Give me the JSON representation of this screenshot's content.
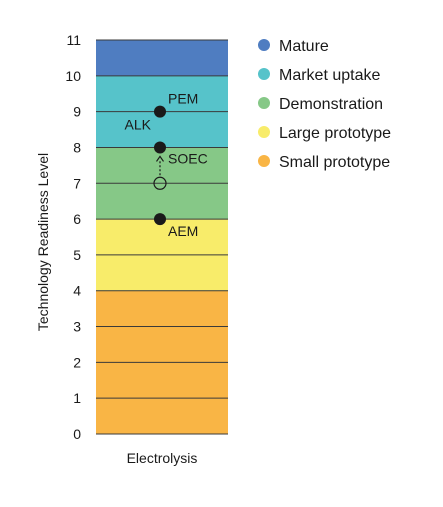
{
  "chart_data": {
    "type": "bar",
    "ylabel": "Technology Readiness Level",
    "categories": [
      "Electrolysis"
    ],
    "ylim": [
      0,
      11
    ],
    "yticks": [
      "0",
      "1",
      "2",
      "3",
      "4",
      "5",
      "6",
      "7",
      "8",
      "9",
      "10",
      "11"
    ],
    "grid": true,
    "legend_position": "right",
    "bands": [
      {
        "name": "Small prototype",
        "from": 0,
        "to": 4,
        "color": "#F9B545"
      },
      {
        "name": "Large prototype",
        "from": 4,
        "to": 6,
        "color": "#F8EC6A"
      },
      {
        "name": "Demonstration",
        "from": 6,
        "to": 8,
        "color": "#86C887"
      },
      {
        "name": "Market uptake",
        "from": 8,
        "to": 10,
        "color": "#56C3CA"
      },
      {
        "name": "Mature",
        "from": 10,
        "to": 11,
        "color": "#4F7DC1"
      }
    ],
    "legend": [
      {
        "name": "Mature",
        "color": "#4F7DC1"
      },
      {
        "name": "Market uptake",
        "color": "#56C3CA"
      },
      {
        "name": "Demonstration",
        "color": "#86C887"
      },
      {
        "name": "Large prototype",
        "color": "#F8EC6A"
      },
      {
        "name": "Small prototype",
        "color": "#F9B545"
      }
    ],
    "points": [
      {
        "label": "PEM",
        "value": 9,
        "filled": true
      },
      {
        "label": "ALK",
        "value": 9,
        "filled": true
      },
      {
        "label": "SOEC",
        "value": 8,
        "filled": true
      },
      {
        "label": "",
        "value": 7,
        "filled": false
      },
      {
        "label": "AEM",
        "value": 6,
        "filled": true
      }
    ],
    "arrows": [
      {
        "from": 7,
        "to": 8
      }
    ]
  }
}
